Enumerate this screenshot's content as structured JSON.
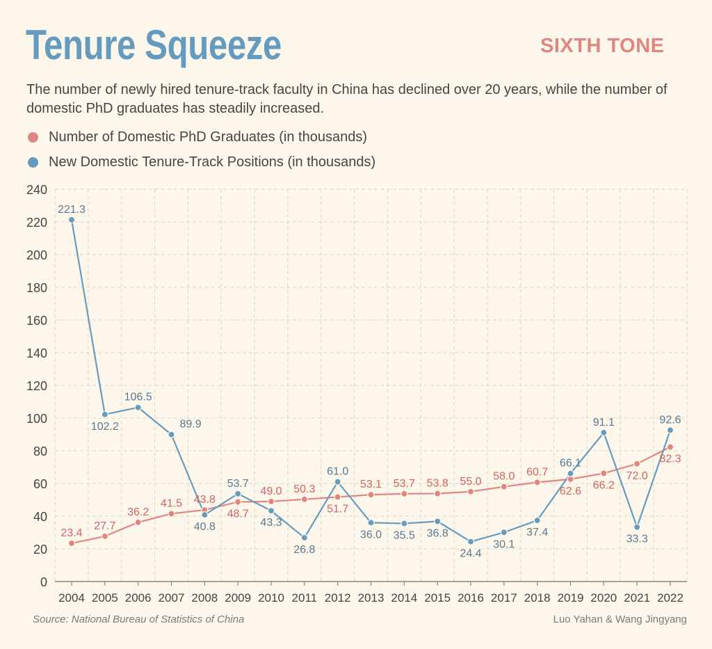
{
  "header": {
    "title": "Tenure Squeeze",
    "brand": "SIXTH TONE",
    "subtitle": "The number of newly hired tenure-track faculty in China has declined over 20 years, while the number of domestic PhD graduates has steadily increased."
  },
  "footer": {
    "source": "Source: National Bureau of Statistics of China",
    "credit": "Luo Yahan & Wang Jingyang"
  },
  "colors": {
    "background": "#fdf6ea",
    "title": "#649bbf",
    "brand": "#e08680",
    "phd_series": "#e08680",
    "tenure_series": "#649bbf",
    "phd_label": "#d0645e",
    "tenure_label": "#587a93"
  },
  "chart_data": {
    "type": "line",
    "title": "Tenure Squeeze",
    "xlabel": "",
    "ylabel": "",
    "x": [
      "2004",
      "2005",
      "2006",
      "2007",
      "2008",
      "2009",
      "2010",
      "2011",
      "2012",
      "2013",
      "2014",
      "2015",
      "2016",
      "2017",
      "2018",
      "2019",
      "2020",
      "2021",
      "2022"
    ],
    "ylim": [
      0,
      240
    ],
    "yticks": [
      0,
      20,
      40,
      60,
      80,
      100,
      120,
      140,
      160,
      180,
      200,
      220,
      240
    ],
    "grid": true,
    "legend_position": "top-left",
    "series": [
      {
        "name": "Number of Domestic PhD Graduates (in thousands)",
        "values": [
          23.4,
          27.7,
          36.2,
          41.5,
          43.8,
          48.7,
          49.0,
          50.3,
          51.7,
          53.1,
          53.7,
          53.8,
          55.0,
          58.0,
          60.7,
          62.6,
          66.2,
          72.0,
          82.3
        ],
        "labels": [
          "23.4",
          "27.7",
          "36.2",
          "41.5",
          "43.8",
          "48.7",
          "49.0",
          "50.3",
          "51.7",
          "53.1",
          "53.7",
          "53.8",
          "55.0",
          "58.0",
          "60.7",
          "62.6",
          "66.2",
          "72.0",
          "82.3"
        ],
        "label_side": [
          "above",
          "above",
          "above",
          "above",
          "above",
          "below",
          "above",
          "above",
          "below",
          "above",
          "above",
          "above",
          "above",
          "above",
          "above",
          "below",
          "below",
          "below",
          "below"
        ]
      },
      {
        "name": "New Domestic Tenure-Track Positions (in thousands)",
        "values": [
          221.3,
          102.2,
          106.5,
          89.9,
          40.8,
          53.7,
          43.3,
          26.8,
          61.0,
          36.0,
          35.5,
          36.8,
          24.4,
          30.1,
          37.4,
          66.1,
          91.1,
          33.3,
          92.6
        ],
        "labels": [
          "221.3",
          "102.2",
          "106.5",
          "89.9",
          "40.8",
          "53.7",
          "43.3",
          "26.8",
          "61.0",
          "36.0",
          "35.5",
          "36.8",
          "24.4",
          "30.1",
          "37.4",
          "66.1",
          "91.1",
          "33.3",
          "92.6"
        ],
        "label_side": [
          "above",
          "below",
          "above",
          "right",
          "below",
          "above",
          "below",
          "below",
          "above",
          "below",
          "below",
          "below",
          "below",
          "below",
          "below",
          "above",
          "above",
          "below",
          "above"
        ]
      }
    ]
  }
}
